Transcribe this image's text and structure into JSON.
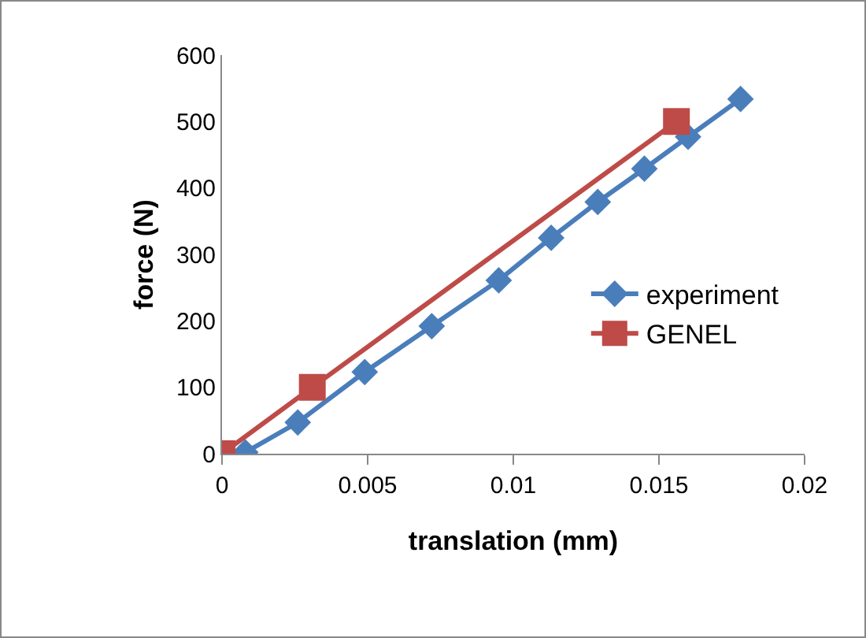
{
  "chart_data": {
    "type": "line",
    "xlabel": "translation (mm)",
    "ylabel": "force (N)",
    "xlim": [
      0,
      0.02
    ],
    "xticks": [
      0,
      0.005,
      0.01,
      0.015,
      0.02
    ],
    "ylim": [
      0,
      600
    ],
    "yticks": [
      0,
      100,
      200,
      300,
      400,
      500,
      600
    ],
    "grid": false,
    "legend": "right",
    "line_style": "solid",
    "series": [
      {
        "name": "experiment",
        "color": "#4a7ebb",
        "marker": "diamond",
        "x": [
          0.0008,
          0.0026,
          0.0049,
          0.0072,
          0.0095,
          0.0113,
          0.0129,
          0.0145,
          0.016,
          0.0178
        ],
        "values": [
          2,
          47,
          123,
          192,
          261,
          325,
          379,
          429,
          477,
          534
        ]
      },
      {
        "name": "GENEL",
        "color": "#be4b48",
        "marker": "square",
        "x": [
          0,
          0.0031,
          0.0156
        ],
        "values": [
          0,
          100,
          500
        ]
      }
    ]
  }
}
